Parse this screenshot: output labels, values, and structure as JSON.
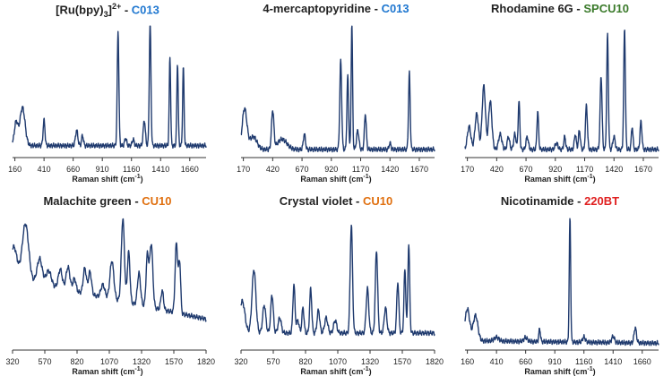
{
  "colors": {
    "line": "#1f3a6e",
    "axis": "#333333"
  },
  "charts": [
    {
      "title_main": "[Ru(bpy)",
      "title_sub": "3",
      "title_close": "]",
      "title_sup": "2+",
      "dash": " - ",
      "substrate": "C013",
      "substrate_color": "#1f77d0",
      "xlabel_main": "Raman shift (cm",
      "xlabel_sup": "-1",
      "xlabel_close": ")",
      "xlim": [
        140,
        1800
      ],
      "ticks": [
        160,
        410,
        660,
        910,
        1160,
        1410,
        1660
      ],
      "tick_labels": [
        "160",
        "410",
        "660",
        "910",
        "1160",
        "1410",
        "1660"
      ],
      "baseline": 0.08,
      "slope": 0,
      "peaks": [
        [
          170,
          0.18,
          15
        ],
        [
          225,
          0.3,
          22
        ],
        [
          410,
          0.2,
          8
        ],
        [
          690,
          0.12,
          10
        ],
        [
          740,
          0.08,
          8
        ],
        [
          1045,
          0.9,
          7
        ],
        [
          1110,
          0.06,
          8
        ],
        [
          1175,
          0.05,
          8
        ],
        [
          1270,
          0.2,
          9
        ],
        [
          1320,
          0.98,
          7
        ],
        [
          1490,
          0.7,
          6
        ],
        [
          1555,
          0.65,
          6
        ],
        [
          1605,
          0.62,
          6
        ]
      ]
    },
    {
      "title_main": "4-mercaptopyridine",
      "title_sub": "",
      "title_close": "",
      "title_sup": "",
      "dash": " - ",
      "substrate": "C013",
      "substrate_color": "#1f77d0",
      "xlabel_main": "Raman shift (cm",
      "xlabel_sup": "-1",
      "xlabel_close": ")",
      "xlim": [
        150,
        1800
      ],
      "ticks": [
        170,
        420,
        670,
        920,
        1170,
        1420,
        1670
      ],
      "tick_labels": [
        "170",
        "420",
        "670",
        "920",
        "1170",
        "1420",
        "1670"
      ],
      "baseline": 0.05,
      "slope": 0,
      "peaks": [
        [
          180,
          0.32,
          20
        ],
        [
          255,
          0.1,
          30
        ],
        [
          420,
          0.3,
          10
        ],
        [
          500,
          0.08,
          40
        ],
        [
          690,
          0.12,
          9
        ],
        [
          1000,
          0.7,
          8
        ],
        [
          1060,
          0.58,
          7
        ],
        [
          1095,
          1.0,
          6
        ],
        [
          1145,
          0.15,
          10
        ],
        [
          1210,
          0.28,
          8
        ],
        [
          1420,
          0.05,
          8
        ],
        [
          1585,
          0.6,
          7
        ]
      ]
    },
    {
      "title_main": "Rhodamine 6G",
      "title_sub": "",
      "title_close": "",
      "title_sup": "",
      "dash": " - ",
      "substrate": "SPCU10",
      "substrate_color": "#3a7a2a",
      "xlabel_main": "Raman shift (cm",
      "xlabel_sup": "-1",
      "xlabel_close": ")",
      "xlim": [
        150,
        1800
      ],
      "ticks": [
        170,
        420,
        670,
        920,
        1170,
        1420,
        1670
      ],
      "tick_labels": [
        "170",
        "420",
        "670",
        "920",
        "1170",
        "1420",
        "1670"
      ],
      "baseline": 0.05,
      "slope": 0,
      "peaks": [
        [
          185,
          0.18,
          15
        ],
        [
          250,
          0.28,
          15
        ],
        [
          310,
          0.5,
          14
        ],
        [
          365,
          0.38,
          14
        ],
        [
          450,
          0.12,
          14
        ],
        [
          520,
          0.1,
          10
        ],
        [
          575,
          0.12,
          10
        ],
        [
          610,
          0.38,
          7
        ],
        [
          680,
          0.1,
          10
        ],
        [
          770,
          0.3,
          7
        ],
        [
          930,
          0.05,
          12
        ],
        [
          1000,
          0.1,
          8
        ],
        [
          1090,
          0.12,
          8
        ],
        [
          1125,
          0.15,
          8
        ],
        [
          1185,
          0.35,
          8
        ],
        [
          1310,
          0.58,
          8
        ],
        [
          1365,
          0.9,
          7
        ],
        [
          1420,
          0.1,
          10
        ],
        [
          1510,
          0.95,
          7
        ],
        [
          1575,
          0.18,
          7
        ],
        [
          1650,
          0.22,
          8
        ]
      ]
    },
    {
      "title_main": "Malachite green",
      "title_sub": "",
      "title_close": "",
      "title_sup": "",
      "dash": " - ",
      "substrate": "CU10",
      "substrate_color": "#e07010",
      "xlabel_main": "Raman shift (cm",
      "xlabel_sup": "-1",
      "xlabel_close": ")",
      "xlim": [
        320,
        1820
      ],
      "ticks": [
        320,
        570,
        820,
        1070,
        1320,
        1570,
        1820
      ],
      "tick_labels": [
        "320",
        "570",
        "820",
        "1070",
        "1320",
        "1570",
        "1820"
      ],
      "baseline": 0.55,
      "slope": -0.32,
      "peaks": [
        [
          330,
          0.25,
          25
        ],
        [
          420,
          0.45,
          25
        ],
        [
          530,
          0.2,
          20
        ],
        [
          600,
          0.12,
          20
        ],
        [
          690,
          0.15,
          15
        ],
        [
          750,
          0.18,
          15
        ],
        [
          800,
          0.1,
          12
        ],
        [
          880,
          0.2,
          12
        ],
        [
          920,
          0.18,
          12
        ],
        [
          1020,
          0.1,
          15
        ],
        [
          1090,
          0.3,
          15
        ],
        [
          1175,
          0.65,
          12
        ],
        [
          1220,
          0.4,
          10
        ],
        [
          1300,
          0.25,
          12
        ],
        [
          1365,
          0.4,
          10
        ],
        [
          1395,
          0.5,
          12
        ],
        [
          1480,
          0.15,
          10
        ],
        [
          1590,
          0.55,
          10
        ],
        [
          1615,
          0.4,
          8
        ]
      ]
    },
    {
      "title_main": "Crystal violet",
      "title_sub": "",
      "title_close": "",
      "title_sup": "",
      "dash": " - ",
      "substrate": "CU10",
      "substrate_color": "#e07010",
      "xlabel_main": "Raman shift (cm",
      "xlabel_sup": "-1",
      "xlabel_close": ")",
      "xlim": [
        320,
        1820
      ],
      "ticks": [
        320,
        570,
        820,
        1070,
        1320,
        1570,
        1820
      ],
      "tick_labels": [
        "320",
        "570",
        "820",
        "1070",
        "1320",
        "1570",
        "1820"
      ],
      "baseline": 0.12,
      "slope": 0,
      "peaks": [
        [
          330,
          0.25,
          20
        ],
        [
          420,
          0.5,
          15
        ],
        [
          500,
          0.22,
          12
        ],
        [
          560,
          0.3,
          10
        ],
        [
          620,
          0.12,
          12
        ],
        [
          730,
          0.38,
          8
        ],
        [
          760,
          0.1,
          10
        ],
        [
          800,
          0.2,
          8
        ],
        [
          860,
          0.35,
          8
        ],
        [
          920,
          0.18,
          10
        ],
        [
          980,
          0.12,
          12
        ],
        [
          1050,
          0.1,
          12
        ],
        [
          1175,
          0.85,
          9
        ],
        [
          1300,
          0.35,
          10
        ],
        [
          1370,
          0.65,
          9
        ],
        [
          1440,
          0.2,
          10
        ],
        [
          1535,
          0.4,
          8
        ],
        [
          1590,
          0.5,
          7
        ],
        [
          1620,
          0.7,
          7
        ]
      ]
    },
    {
      "title_main": "Nicotinamide",
      "title_sub": "",
      "title_close": "",
      "title_sup": "",
      "dash": " - ",
      "substrate": "220BT",
      "substrate_color": "#e02020",
      "xlabel_main": "Raman shift (cm",
      "xlabel_sup": "-1",
      "xlabel_close": ")",
      "xlim": [
        140,
        1800
      ],
      "ticks": [
        160,
        410,
        660,
        910,
        1160,
        1410,
        1660
      ],
      "tick_labels": [
        "160",
        "410",
        "660",
        "910",
        "1160",
        "1410",
        "1660"
      ],
      "baseline": 0.06,
      "slope": -0.02,
      "peaks": [
        [
          160,
          0.25,
          20
        ],
        [
          230,
          0.2,
          20
        ],
        [
          410,
          0.03,
          20
        ],
        [
          660,
          0.03,
          15
        ],
        [
          780,
          0.1,
          7
        ],
        [
          1040,
          1.0,
          6
        ],
        [
          1160,
          0.04,
          12
        ],
        [
          1410,
          0.05,
          12
        ],
        [
          1600,
          0.12,
          10
        ]
      ]
    }
  ]
}
